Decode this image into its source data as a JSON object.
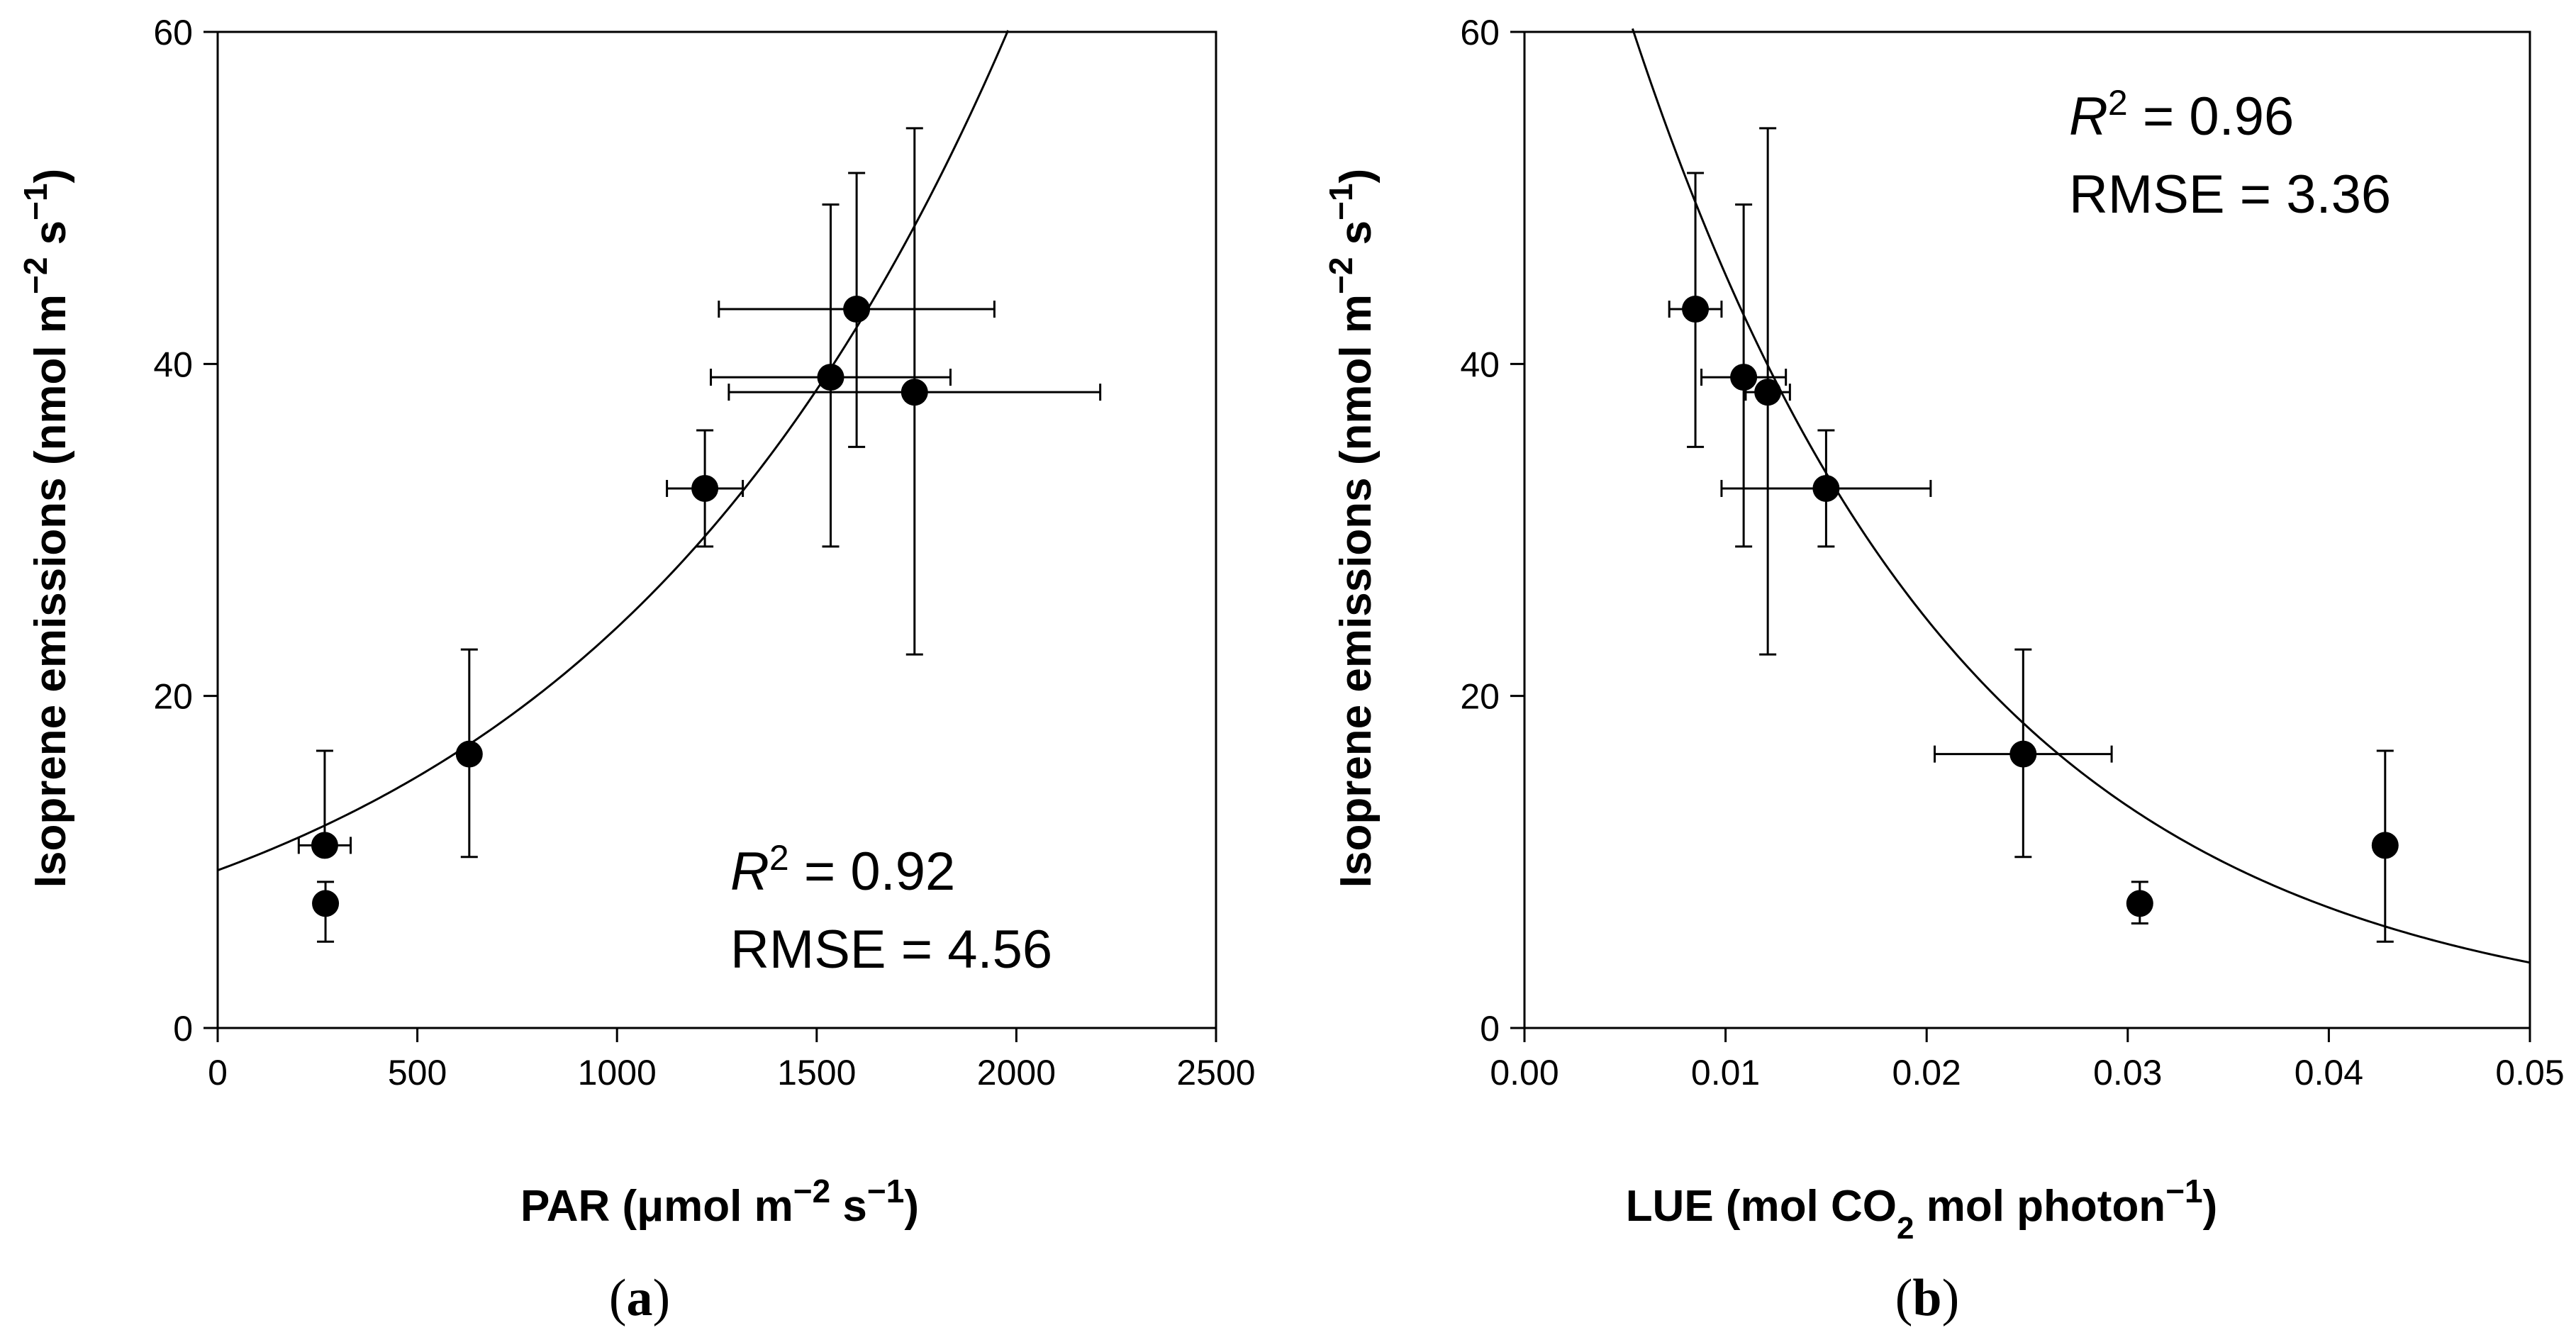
{
  "chart_data": [
    {
      "type": "scatter",
      "panel_label": {
        "open": "(",
        "letter": "a",
        "close": ")"
      },
      "xlabel": {
        "prefix": "PAR (",
        "mu": "μ",
        "mid": "mol m",
        "exp1": "−2",
        "sp": " s",
        "exp2": "−1",
        "close": ")"
      },
      "ylabel": {
        "prefix": "Isoprene emissions (nmol m",
        "exp1": "−2",
        "sp": " s",
        "exp2": "−1",
        "close": ")"
      },
      "xlim": [
        0,
        2500
      ],
      "ylim": [
        0,
        60
      ],
      "xticks": [
        0,
        500,
        1000,
        1500,
        2000,
        2500
      ],
      "xtick_labels": [
        "0",
        "500",
        "1000",
        "1500",
        "2000",
        "2500"
      ],
      "yticks": [
        0,
        20,
        40,
        60
      ],
      "ytick_labels": [
        "0",
        "20",
        "40",
        "60"
      ],
      "points": [
        {
          "x": 268,
          "y": 11.0,
          "xerr": 65,
          "yerr_low": 11.0,
          "yerr_high": 16.7
        },
        {
          "x": 270,
          "y": 7.5,
          "xerr": 0,
          "yerr_low": 5.2,
          "yerr_high": 8.8
        },
        {
          "x": 630,
          "y": 16.5,
          "xerr": 0,
          "yerr_low": 10.3,
          "yerr_high": 22.8
        },
        {
          "x": 1220,
          "y": 32.5,
          "xerr": 95,
          "yerr_low": 29.0,
          "yerr_high": 36.0
        },
        {
          "x": 1535,
          "y": 39.2,
          "xerr": 300,
          "yerr_low": 29.0,
          "yerr_high": 49.6
        },
        {
          "x": 1600,
          "y": 43.3,
          "xerr": 345,
          "yerr_low": 35.0,
          "yerr_high": 51.5
        },
        {
          "x": 1745,
          "y": 38.3,
          "xerr": 465,
          "yerr_low": 22.5,
          "yerr_high": 54.2
        }
      ],
      "fit": {
        "model": "exponential",
        "a": 9.5,
        "b": 0.000932,
        "x_from": 0,
        "x_to": 2500
      },
      "annotation": {
        "r_symbol": "R",
        "r_exp": "2",
        "r_value": " = 0.92",
        "rmse": "RMSE = 4.56"
      }
    },
    {
      "type": "scatter",
      "panel_label": {
        "open": "(",
        "letter": "b",
        "close": ")"
      },
      "xlabel": {
        "prefix": "LUE (mol CO",
        "sub": "2",
        "mid": " mol photon",
        "exp1": "−1",
        "close": ")"
      },
      "ylabel": {
        "prefix": "Isoprene emissions (nmol m",
        "exp1": "−2",
        "sp": " s",
        "exp2": "−1",
        "close": ")"
      },
      "xlim": [
        0,
        0.05
      ],
      "ylim": [
        0,
        60
      ],
      "xticks": [
        0,
        0.01,
        0.02,
        0.03,
        0.04,
        0.05
      ],
      "xtick_labels": [
        "0.00",
        "0.01",
        "0.02",
        "0.03",
        "0.04",
        "0.05"
      ],
      "yticks": [
        0,
        20,
        40,
        60
      ],
      "ytick_labels": [
        "0",
        "20",
        "40",
        "60"
      ],
      "points": [
        {
          "x": 0.0085,
          "y": 43.3,
          "xerr": 0.0013,
          "yerr_low": 35.0,
          "yerr_high": 51.5
        },
        {
          "x": 0.0109,
          "y": 39.2,
          "xerr": 0.0021,
          "yerr_low": 29.0,
          "yerr_high": 49.6
        },
        {
          "x": 0.0121,
          "y": 38.3,
          "xerr": 0.0011,
          "yerr_low": 22.5,
          "yerr_high": 54.2
        },
        {
          "x": 0.015,
          "y": 32.5,
          "xerr": 0.0052,
          "yerr_low": 29.0,
          "yerr_high": 36.0
        },
        {
          "x": 0.0248,
          "y": 16.5,
          "xerr": 0.0044,
          "yerr_low": 10.3,
          "yerr_high": 22.8
        },
        {
          "x": 0.0306,
          "y": 7.5,
          "xerr": 0,
          "yerr_low": 6.3,
          "yerr_high": 8.8
        },
        {
          "x": 0.0428,
          "y": 11.0,
          "xerr": 0,
          "yerr_low": 5.2,
          "yerr_high": 16.7
        }
      ],
      "fit": {
        "model": "exponential",
        "a": 83.6,
        "b": -61.1,
        "x_from": 0.005,
        "x_to": 0.05
      },
      "baseline": {
        "y": 0,
        "x_from": 0.003,
        "x_to": 0.0435
      },
      "annotation": {
        "r_symbol": "R",
        "r_exp": "2",
        "r_value": " = 0.96",
        "rmse": "RMSE = 3.36"
      }
    }
  ]
}
